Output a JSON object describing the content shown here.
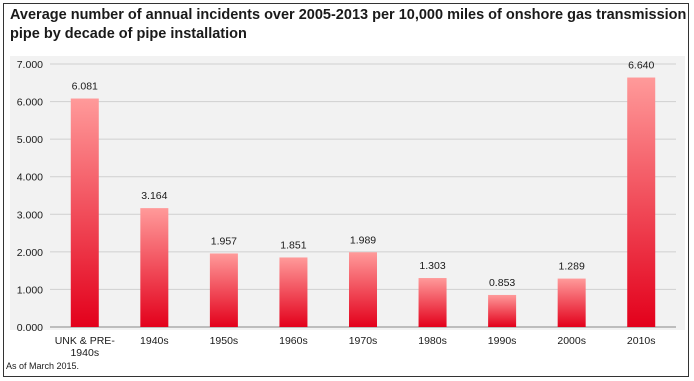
{
  "chart_data": {
    "type": "bar",
    "title_lines": [
      "Average number of annual incidents over 2005-2013 per 10,000 miles of onshore gas transmission",
      "pipe by decade of pipe installation"
    ],
    "categories": [
      [
        "UNK & PRE-",
        "1940s"
      ],
      [
        "1940s"
      ],
      [
        "1950s"
      ],
      [
        "1960s"
      ],
      [
        "1970s"
      ],
      [
        "1980s"
      ],
      [
        "1990s"
      ],
      [
        "2000s"
      ],
      [
        "2010s"
      ]
    ],
    "values": [
      6.081,
      3.164,
      1.957,
      1.851,
      1.989,
      1.303,
      0.853,
      1.289,
      6.64
    ],
    "value_labels": [
      "6.081",
      "3.164",
      "1.957",
      "1.851",
      "1.989",
      "1.303",
      "0.853",
      "1.289",
      "6.640"
    ],
    "yticks": [
      0,
      1,
      2,
      3,
      4,
      5,
      6,
      7
    ],
    "ytick_labels": [
      "0.000",
      "1.000",
      "2.000",
      "3.000",
      "4.000",
      "5.000",
      "6.000",
      "7.000"
    ],
    "ylim": [
      0,
      7
    ],
    "grid": true,
    "bar_color_top": "#ff9a9a",
    "bar_color_bottom": "#e3001b"
  },
  "footnote": "As of March 2015."
}
